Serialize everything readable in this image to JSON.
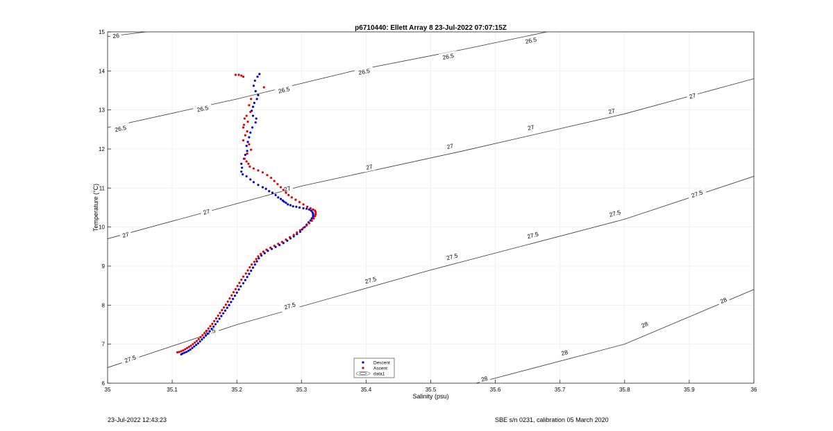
{
  "chart_data": {
    "type": "scatter",
    "title": "p6710440: Ellett Array 8 23-Jul-2022 07:07:15Z",
    "xlabel": "Salinity (psu)",
    "ylabel": "Temperature (°C)",
    "xlim": [
      35,
      36
    ],
    "ylim": [
      6,
      15
    ],
    "xticks": [
      35,
      35.1,
      35.2,
      35.3,
      35.4,
      35.5,
      35.6,
      35.7,
      35.8,
      35.9,
      36
    ],
    "xtick_labels": [
      "35",
      "35.1",
      "35.2",
      "35.3",
      "35.4",
      "35.5",
      "35.6",
      "35.7",
      "35.8",
      "35.9",
      "36"
    ],
    "yticks": [
      6,
      7,
      8,
      9,
      10,
      11,
      12,
      13,
      14,
      15
    ],
    "ytick_labels": [
      "6",
      "7",
      "8",
      "9",
      "10",
      "11",
      "12",
      "13",
      "14",
      "15"
    ],
    "grid": true,
    "legend_position": "bottom-center",
    "legend": [
      {
        "label": "Descent",
        "marker": "dot",
        "color": "#0000cc"
      },
      {
        "label": "Ascent",
        "marker": "dot",
        "color": "#dd0000"
      },
      {
        "label": "data1",
        "marker": "contour"
      }
    ],
    "contours": [
      {
        "level": "26",
        "points": [
          [
            35,
            14.88
          ],
          [
            35.06,
            15
          ]
        ],
        "labels": [
          [
            35.013,
            14.9
          ]
        ]
      },
      {
        "level": "26.5",
        "points": [
          [
            35,
            12.55
          ],
          [
            35.2,
            13.28
          ],
          [
            35.38,
            14.0
          ],
          [
            35.55,
            14.55
          ],
          [
            35.68,
            15
          ]
        ],
        "labels": [
          [
            35.02,
            12.52
          ],
          [
            35.147,
            13.03
          ],
          [
            35.273,
            13.51
          ],
          [
            35.397,
            13.98
          ],
          [
            35.527,
            14.37
          ],
          [
            35.655,
            14.78
          ]
        ]
      },
      {
        "level": "27",
        "points": [
          [
            35,
            9.7
          ],
          [
            35.2,
            10.6
          ],
          [
            35.3,
            11.05
          ],
          [
            35.55,
            11.95
          ],
          [
            35.8,
            12.9
          ],
          [
            36,
            13.8
          ]
        ],
        "labels": [
          [
            35.028,
            9.8
          ],
          [
            35.153,
            10.39
          ],
          [
            35.278,
            10.98
          ],
          [
            35.405,
            11.54
          ],
          [
            35.53,
            12.07
          ],
          [
            35.655,
            12.55
          ],
          [
            35.78,
            12.97
          ],
          [
            35.905,
            13.36
          ],
          [
            36.018,
            13.64
          ]
        ]
      },
      {
        "level": "27.5",
        "points": [
          [
            35,
            6.4
          ],
          [
            35.2,
            7.5
          ],
          [
            35.5,
            8.9
          ],
          [
            35.8,
            10.2
          ],
          [
            36,
            11.3
          ]
        ],
        "labels": [
          [
            35.035,
            6.62
          ],
          [
            35.158,
            7.31
          ],
          [
            35.282,
            7.98
          ],
          [
            35.407,
            8.64
          ],
          [
            35.533,
            9.24
          ],
          [
            35.658,
            9.79
          ],
          [
            35.785,
            10.35
          ],
          [
            35.912,
            10.85
          ]
        ]
      },
      {
        "level": "28",
        "points": [
          [
            35.57,
            6
          ],
          [
            35.8,
            7.0
          ],
          [
            36,
            8.4
          ]
        ],
        "labels": [
          [
            35.583,
            6.11
          ],
          [
            35.707,
            6.78
          ],
          [
            35.831,
            7.5
          ],
          [
            35.953,
            8.12
          ]
        ]
      }
    ],
    "series": [
      {
        "name": "Descent",
        "color": "#0000cc",
        "x": [
          35.235,
          35.232,
          35.228,
          35.226,
          35.229,
          35.233,
          35.231,
          35.227,
          35.225,
          35.223,
          35.225,
          35.23,
          35.229,
          35.224,
          35.221,
          35.219,
          35.217,
          35.215,
          35.216,
          35.213,
          35.211,
          35.207,
          35.208,
          35.207,
          35.209,
          35.215,
          35.221,
          35.226,
          35.233,
          35.24,
          35.245,
          35.25,
          35.255,
          35.26,
          35.264,
          35.268,
          35.271,
          35.273,
          35.276,
          35.279,
          35.283,
          35.287,
          35.292,
          35.297,
          35.303,
          35.308,
          35.312,
          35.315,
          35.317,
          35.318,
          35.318,
          35.318,
          35.316,
          35.314,
          35.311,
          35.308,
          35.305,
          35.301,
          35.298,
          35.293,
          35.288,
          35.283,
          35.278,
          35.272,
          35.266,
          35.26,
          35.254,
          35.248,
          35.243,
          35.238,
          35.234,
          35.231,
          35.228,
          35.225,
          35.222,
          35.219,
          35.216,
          35.213,
          35.21,
          35.206,
          35.203,
          35.2,
          35.197,
          35.194,
          35.191,
          35.188,
          35.185,
          35.182,
          35.179,
          35.176,
          35.173,
          35.17,
          35.167,
          35.164,
          35.161,
          35.158,
          35.155,
          35.152,
          35.149,
          35.146,
          35.143,
          35.14,
          35.137,
          35.134,
          35.131,
          35.128,
          35.125,
          35.122,
          35.119,
          35.116,
          35.114
        ],
        "y": [
          13.92,
          13.85,
          13.75,
          13.62,
          13.48,
          13.38,
          13.28,
          13.18,
          13.08,
          12.98,
          12.85,
          12.78,
          12.68,
          12.55,
          12.42,
          12.3,
          12.18,
          12.08,
          11.95,
          11.85,
          11.75,
          11.62,
          11.52,
          11.42,
          11.35,
          11.3,
          11.22,
          11.15,
          11.08,
          11.02,
          10.98,
          10.92,
          10.88,
          10.82,
          10.76,
          10.72,
          10.68,
          10.65,
          10.62,
          10.58,
          10.56,
          10.53,
          10.52,
          10.5,
          10.48,
          10.47,
          10.45,
          10.42,
          10.38,
          10.34,
          10.3,
          10.26,
          10.22,
          10.17,
          10.12,
          10.06,
          10.0,
          9.94,
          9.88,
          9.82,
          9.76,
          9.71,
          9.65,
          9.59,
          9.54,
          9.49,
          9.44,
          9.39,
          9.33,
          9.27,
          9.2,
          9.12,
          9.04,
          8.96,
          8.88,
          8.8,
          8.72,
          8.64,
          8.56,
          8.48,
          8.4,
          8.32,
          8.24,
          8.16,
          8.08,
          8.0,
          7.93,
          7.86,
          7.79,
          7.72,
          7.65,
          7.58,
          7.51,
          7.45,
          7.39,
          7.33,
          7.27,
          7.22,
          7.17,
          7.12,
          7.07,
          7.02,
          6.98,
          6.94,
          6.9,
          6.86,
          6.83,
          6.8,
          6.78,
          6.76,
          6.74
        ]
      },
      {
        "name": "Ascent",
        "color": "#dd0000",
        "x": [
          35.198,
          35.203,
          35.207,
          35.21,
          35.242,
          35.222,
          35.219,
          35.221,
          35.215,
          35.212,
          35.217,
          35.211,
          35.21,
          35.216,
          35.213,
          35.21,
          35.219,
          35.222,
          35.216,
          35.212,
          35.215,
          35.218,
          35.22,
          35.226,
          35.233,
          35.24,
          35.247,
          35.253,
          35.258,
          35.263,
          35.268,
          35.272,
          35.276,
          35.28,
          35.285,
          35.291,
          35.297,
          35.303,
          35.309,
          35.314,
          35.318,
          35.321,
          35.322,
          35.322,
          35.321,
          35.319,
          35.316,
          35.312,
          35.308,
          35.303,
          35.298,
          35.293,
          35.288,
          35.282,
          35.276,
          35.27,
          35.264,
          35.258,
          35.252,
          35.246,
          35.241,
          35.237,
          35.233,
          35.23,
          35.227,
          35.223,
          35.22,
          35.217,
          35.214,
          35.21,
          35.207,
          35.204,
          35.201,
          35.198,
          35.195,
          35.192,
          35.189,
          35.186,
          35.183,
          35.18,
          35.177,
          35.174,
          35.171,
          35.168,
          35.165,
          35.162,
          35.159,
          35.156,
          35.153,
          35.15,
          35.147,
          35.144,
          35.141,
          35.138,
          35.135,
          35.132,
          35.129,
          35.126,
          35.123,
          35.12,
          35.117,
          35.114,
          35.111,
          35.108
        ],
        "y": [
          13.9,
          13.9,
          13.88,
          13.85,
          13.58,
          13.28,
          13.12,
          12.95,
          12.85,
          12.78,
          12.7,
          12.62,
          12.55,
          12.45,
          12.35,
          12.22,
          12.12,
          11.98,
          11.88,
          11.75,
          11.68,
          11.62,
          11.55,
          11.5,
          11.45,
          11.4,
          11.33,
          11.26,
          11.18,
          11.1,
          11.02,
          10.95,
          10.88,
          10.82,
          10.76,
          10.7,
          10.64,
          10.58,
          10.52,
          10.48,
          10.45,
          10.42,
          10.38,
          10.33,
          10.28,
          10.22,
          10.16,
          10.1,
          10.04,
          9.98,
          9.92,
          9.86,
          9.8,
          9.74,
          9.68,
          9.62,
          9.57,
          9.52,
          9.47,
          9.42,
          9.37,
          9.31,
          9.25,
          9.18,
          9.11,
          9.04,
          8.97,
          8.89,
          8.81,
          8.73,
          8.65,
          8.57,
          8.49,
          8.41,
          8.33,
          8.25,
          8.17,
          8.09,
          8.01,
          7.94,
          7.87,
          7.8,
          7.73,
          7.66,
          7.59,
          7.52,
          7.46,
          7.4,
          7.34,
          7.28,
          7.23,
          7.18,
          7.13,
          7.08,
          7.04,
          7.0,
          6.96,
          6.93,
          6.9,
          6.87,
          6.84,
          6.82,
          6.8,
          6.79
        ]
      }
    ]
  },
  "footer": {
    "left": "23-Jul-2022 12:43:23",
    "right": "SBE s/n 0231, calibration 05 March 2020"
  }
}
